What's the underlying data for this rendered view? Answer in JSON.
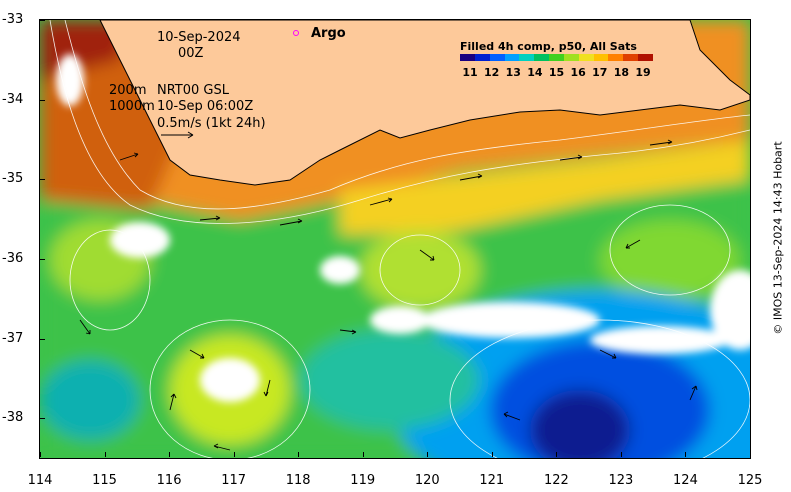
{
  "map": {
    "date_line": "10-Sep-2024",
    "time_line": "00Z",
    "contour_200": "200m",
    "contour_1000": "1000m",
    "product": "NRT00 GSL",
    "product_time": "10-Sep 06:00Z",
    "scale_arrow": "0.5m/s (1kt 24h)",
    "argo_label": "Argo",
    "lon_range": [
      114,
      125
    ],
    "lat_range": [
      -38.5,
      -33
    ],
    "lon_ticks": [
      "114",
      "115",
      "116",
      "117",
      "118",
      "119",
      "120",
      "121",
      "122",
      "123",
      "124",
      "125"
    ],
    "lat_ticks": [
      "-33",
      "-34",
      "-35",
      "-36",
      "-37",
      "-38"
    ],
    "land_color": "#fdc99a",
    "cloud_color": "#ffffff"
  },
  "legend": {
    "title": "Filled 4h comp, p50, All Sats",
    "ticks": [
      "11",
      "12",
      "13",
      "14",
      "15",
      "16",
      "17",
      "18",
      "19"
    ],
    "colors": [
      "#1a0080",
      "#0020d0",
      "#0060ff",
      "#00a0ff",
      "#00d0c0",
      "#00c060",
      "#40d020",
      "#a0e020",
      "#f0e020",
      "#ffc000",
      "#ff8000",
      "#e04000",
      "#b01000"
    ]
  },
  "credit": "© IMOS 13-Sep-2024 14:43 Hobart"
}
